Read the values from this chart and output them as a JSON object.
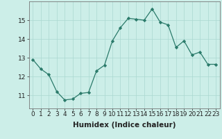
{
  "x": [
    0,
    1,
    2,
    3,
    4,
    5,
    6,
    7,
    8,
    9,
    10,
    11,
    12,
    13,
    14,
    15,
    16,
    17,
    18,
    19,
    20,
    21,
    22,
    23
  ],
  "y": [
    12.9,
    12.4,
    12.1,
    11.2,
    10.75,
    10.8,
    11.1,
    11.15,
    12.3,
    12.6,
    13.9,
    14.6,
    15.1,
    15.05,
    15.0,
    15.6,
    14.9,
    14.75,
    13.55,
    13.9,
    13.15,
    13.3,
    12.65,
    12.65
  ],
  "xlabel": "Humidex (Indice chaleur)",
  "xlim": [
    -0.5,
    23.5
  ],
  "ylim": [
    10.3,
    16.0
  ],
  "yticks": [
    11,
    12,
    13,
    14,
    15
  ],
  "xticks": [
    0,
    1,
    2,
    3,
    4,
    5,
    6,
    7,
    8,
    9,
    10,
    11,
    12,
    13,
    14,
    15,
    16,
    17,
    18,
    19,
    20,
    21,
    22,
    23
  ],
  "line_color": "#2a7a6a",
  "marker_color": "#2a7a6a",
  "bg_color": "#cceee8",
  "grid_color": "#aad8d0",
  "label_fontsize": 7.5,
  "tick_fontsize": 6.5
}
